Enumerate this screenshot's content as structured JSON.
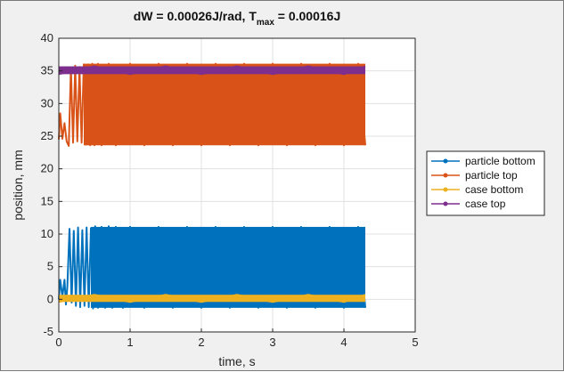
{
  "chart_data": {
    "type": "line",
    "title": "dW = 0.00026J/rad, T",
    "title_sub": "max",
    "title_end": " = 0.00016J",
    "xlabel": "time, s",
    "ylabel": "position, mm",
    "xlim": [
      0,
      5
    ],
    "ylim": [
      -5,
      40
    ],
    "xticks": [
      "0",
      "1",
      "2",
      "3",
      "4",
      "5"
    ],
    "yticks": [
      "-5",
      "0",
      "5",
      "10",
      "15",
      "20",
      "25",
      "30",
      "35",
      "40"
    ],
    "grid": true,
    "legend_position": "outside-right",
    "series": [
      {
        "name": "particle bottom",
        "color": "#0072BD",
        "marker": "dot",
        "points": [
          [
            0.0,
            0.0
          ],
          [
            0.02,
            3.0
          ],
          [
            0.05,
            0.4
          ],
          [
            0.08,
            3.0
          ],
          [
            0.1,
            -0.8
          ],
          [
            0.12,
            2.0
          ],
          [
            0.15,
            10.8
          ],
          [
            0.18,
            -0.5
          ],
          [
            0.21,
            10.5
          ],
          [
            0.24,
            -1.0
          ],
          [
            0.27,
            11.0
          ],
          [
            0.3,
            -1.2
          ],
          [
            0.33,
            10.6
          ],
          [
            0.36,
            -1.0
          ],
          [
            0.39,
            11.0
          ],
          [
            0.42,
            -1.2
          ],
          [
            0.45,
            10.9
          ],
          [
            0.48,
            -1.4
          ],
          [
            0.51,
            11.2
          ],
          [
            0.55,
            -1.3
          ],
          [
            0.6,
            11.1
          ],
          [
            0.65,
            -1.3
          ],
          [
            0.7,
            11.2
          ],
          [
            0.75,
            -1.3
          ],
          [
            0.8,
            11.1
          ],
          [
            0.9,
            -1.3
          ],
          [
            1.0,
            11.1
          ],
          [
            1.2,
            -1.3
          ],
          [
            1.4,
            11.1
          ],
          [
            1.6,
            -1.3
          ],
          [
            1.8,
            11.1
          ],
          [
            2.0,
            -1.3
          ],
          [
            2.2,
            11.1
          ],
          [
            2.4,
            -1.3
          ],
          [
            2.6,
            11.1
          ],
          [
            2.8,
            -1.3
          ],
          [
            3.0,
            11.1
          ],
          [
            3.2,
            -1.3
          ],
          [
            3.4,
            11.1
          ],
          [
            3.6,
            -1.3
          ],
          [
            3.8,
            11.1
          ],
          [
            4.0,
            -1.3
          ],
          [
            4.2,
            11.1
          ],
          [
            4.3,
            -1.3
          ]
        ],
        "band": {
          "x_start": 0.45,
          "x_end": 4.3,
          "min": -1.3,
          "max": 11.1
        }
      },
      {
        "name": "particle top",
        "color": "#D95319",
        "marker": "dot",
        "points": [
          [
            0.0,
            24.5
          ],
          [
            0.02,
            28.5
          ],
          [
            0.05,
            24.6
          ],
          [
            0.08,
            27.0
          ],
          [
            0.11,
            24.2
          ],
          [
            0.14,
            23.5
          ],
          [
            0.17,
            35.5
          ],
          [
            0.2,
            24.0
          ],
          [
            0.23,
            35.8
          ],
          [
            0.26,
            24.2
          ],
          [
            0.29,
            35.6
          ],
          [
            0.32,
            24.0
          ],
          [
            0.35,
            36.0
          ],
          [
            0.38,
            23.7
          ],
          [
            0.41,
            36.0
          ],
          [
            0.44,
            23.6
          ],
          [
            0.47,
            36.1
          ],
          [
            0.5,
            23.6
          ],
          [
            0.55,
            36.1
          ],
          [
            0.6,
            23.6
          ],
          [
            0.7,
            36.1
          ],
          [
            0.8,
            23.6
          ],
          [
            1.0,
            36.1
          ],
          [
            1.2,
            23.6
          ],
          [
            1.4,
            36.1
          ],
          [
            1.6,
            23.6
          ],
          [
            1.8,
            36.1
          ],
          [
            2.0,
            23.6
          ],
          [
            2.2,
            36.1
          ],
          [
            2.4,
            23.6
          ],
          [
            2.6,
            36.1
          ],
          [
            2.8,
            23.6
          ],
          [
            3.0,
            36.1
          ],
          [
            3.2,
            23.6
          ],
          [
            3.4,
            36.1
          ],
          [
            3.6,
            23.6
          ],
          [
            3.8,
            36.1
          ],
          [
            4.0,
            23.6
          ],
          [
            4.2,
            36.1
          ],
          [
            4.3,
            23.6
          ]
        ],
        "band": {
          "x_start": 0.35,
          "x_end": 4.3,
          "min": 23.6,
          "max": 36.1
        }
      },
      {
        "name": "case bottom",
        "color": "#EDB120",
        "marker": "dot",
        "points": [
          [
            0.0,
            -0.4
          ],
          [
            0.5,
            0.7
          ],
          [
            1.0,
            -0.4
          ],
          [
            1.5,
            0.7
          ],
          [
            2.0,
            -0.4
          ],
          [
            2.5,
            0.7
          ],
          [
            3.0,
            -0.4
          ],
          [
            3.5,
            0.7
          ],
          [
            4.0,
            -0.4
          ],
          [
            4.3,
            0.7
          ]
        ],
        "band": {
          "x_start": 0.0,
          "x_end": 4.3,
          "min": -0.4,
          "max": 0.7
        }
      },
      {
        "name": "case top",
        "color": "#7E2F8E",
        "marker": "dot",
        "points": [
          [
            0.0,
            34.5
          ],
          [
            0.5,
            35.7
          ],
          [
            1.0,
            34.5
          ],
          [
            1.5,
            35.7
          ],
          [
            2.0,
            34.5
          ],
          [
            2.5,
            35.7
          ],
          [
            3.0,
            34.5
          ],
          [
            3.5,
            35.7
          ],
          [
            4.0,
            34.5
          ],
          [
            4.3,
            35.7
          ]
        ],
        "band": {
          "x_start": 0.0,
          "x_end": 4.3,
          "min": 34.5,
          "max": 35.7
        }
      }
    ]
  }
}
